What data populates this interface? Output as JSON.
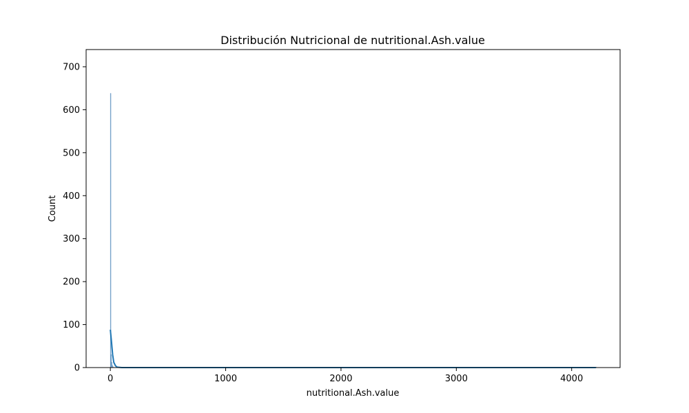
{
  "chart_data": {
    "type": "histogram",
    "title": "Distribución Nutricional de nutritional.Ash.value",
    "xlabel": "nutritional.Ash.value",
    "ylabel": "Count",
    "xlim": [
      -210,
      4420
    ],
    "ylim": [
      0,
      740
    ],
    "xticks": [
      0,
      1000,
      2000,
      3000,
      4000
    ],
    "yticks": [
      0,
      100,
      200,
      300,
      400,
      500,
      600,
      700
    ],
    "grid": false,
    "bars": [
      {
        "x0": 0,
        "x1": 5,
        "count": 638
      },
      {
        "x0": 5,
        "x1": 10,
        "count": 30
      },
      {
        "x0": 10,
        "x1": 15,
        "count": 12
      },
      {
        "x0": 15,
        "x1": 20,
        "count": 5
      },
      {
        "x0": 20,
        "x1": 25,
        "count": 2
      },
      {
        "x0": 4210,
        "x1": 4215,
        "count": 1
      }
    ],
    "kde": {
      "x": [
        0,
        10,
        20,
        30,
        45,
        60,
        100,
        1000,
        2000,
        3000,
        4000,
        4210
      ],
      "y": [
        88,
        60,
        30,
        12,
        4,
        1,
        0,
        0,
        0,
        0,
        0,
        0
      ]
    },
    "colors": {
      "bar_fill": "#a6c3dd",
      "bar_edge": "#5a8fbf",
      "kde_line": "#1f77b4"
    }
  }
}
